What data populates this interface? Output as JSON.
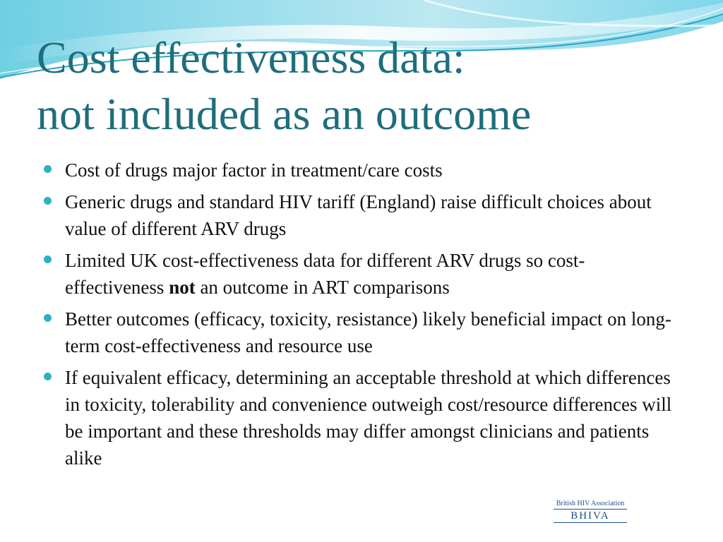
{
  "slide": {
    "title_line1": "Cost effectiveness data:",
    "title_line2": "not included as an outcome",
    "bullets": [
      {
        "text": "Cost of drugs major factor in treatment/care costs"
      },
      {
        "text": "Generic drugs and standard HIV tariff (England) raise difficult choices about value of different ARV drugs"
      },
      {
        "before": "Limited UK cost-effectiveness data for different ARV drugs so cost-effectiveness ",
        "bold": "not",
        "after": " an outcome in ART comparisons"
      },
      {
        "text": "Better outcomes (efficacy, toxicity, resistance) likely beneficial impact on long-term cost-effectiveness and resource use"
      },
      {
        "text": "If equivalent efficacy, determining an acceptable threshold at which differences in toxicity, tolerability and convenience outweigh cost/resource differences will be important and these thresholds may differ amongst clinicians and patients alike"
      }
    ]
  },
  "logo": {
    "line1": "British HIV Association",
    "line2": "BHIVA"
  },
  "colors": {
    "title": "#1e6e7c",
    "bullet": "#2cb0c8",
    "wave_light": "#bfe9f2",
    "wave_mid": "#7fd3e6",
    "wave_dark": "#2aa6c4"
  }
}
